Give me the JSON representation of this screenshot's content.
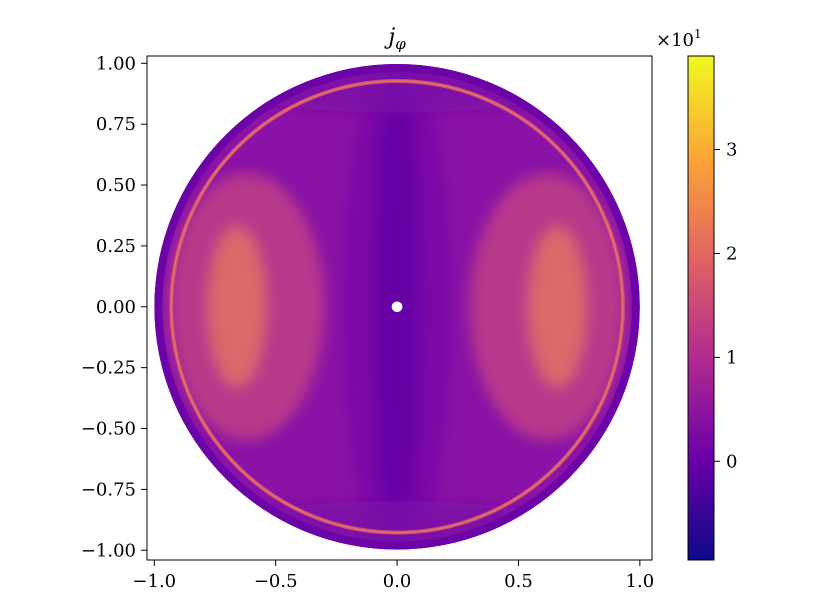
{
  "chart_data": {
    "type": "heatmap",
    "title_main": "j",
    "title_sub": "φ",
    "x_ticks": [
      -1.0,
      -0.5,
      0.0,
      0.5,
      1.0
    ],
    "x_tick_labels": [
      "−1.0",
      "−0.5",
      "0.0",
      "0.5",
      "1.0"
    ],
    "y_ticks": [
      1.0,
      0.75,
      0.5,
      0.25,
      0.0,
      -0.25,
      -0.5,
      -0.75,
      -1.0
    ],
    "y_tick_labels": [
      "1.00",
      "0.75",
      "0.50",
      "0.25",
      "0.00",
      "−0.25",
      "−0.50",
      "−0.75",
      "−1.00"
    ],
    "xlim": [
      -1.03,
      1.05
    ],
    "ylim": [
      -1.04,
      1.03
    ],
    "domain_radius": 1.0,
    "hole_radius": 0.022,
    "colormap": "plasma",
    "colorbar": {
      "range": [
        -0.95,
        3.9
      ],
      "ticks": [
        0,
        1,
        2,
        3
      ],
      "tick_labels": [
        "0",
        "1",
        "2",
        "3"
      ],
      "offset_base": "×10",
      "offset_exp": "1"
    },
    "colors": {
      "plasma_0": "#0d0887",
      "plasma_1": "#6a00a8",
      "plasma_2": "#b12a90",
      "plasma_3": "#e16462",
      "plasma_4": "#fca636",
      "plasma_5": "#f0f921"
    }
  }
}
